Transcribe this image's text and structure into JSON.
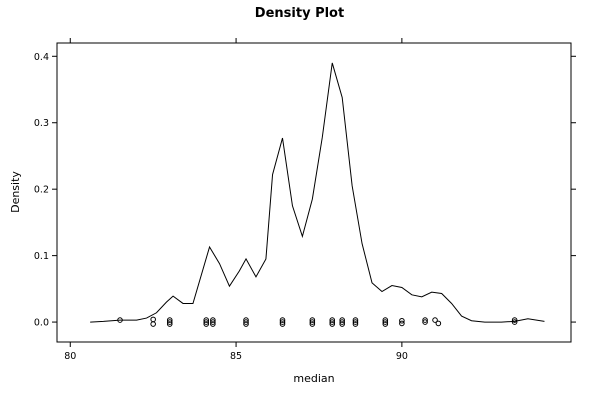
{
  "chart_data": {
    "type": "line",
    "title": "Density Plot",
    "xlabel": "median",
    "ylabel": "Density",
    "xlim": [
      79.6,
      95.1
    ],
    "ylim": [
      -0.03,
      0.42
    ],
    "x_ticks": [
      80,
      85,
      90
    ],
    "y_ticks": [
      0.0,
      0.1,
      0.2,
      0.3,
      0.4
    ],
    "x_tick_labels": [
      "80",
      "85",
      "90"
    ],
    "y_tick_labels": [
      "0.0",
      "0.1",
      "0.2",
      "0.3",
      "0.4"
    ],
    "grid": false,
    "legend": "none",
    "series": [
      {
        "x": [
          80.6,
          81.0,
          81.5,
          82.0,
          82.3,
          82.6,
          82.9,
          83.1,
          83.4,
          83.7,
          84.2,
          84.5,
          84.8,
          85.1,
          85.3,
          85.6,
          85.9,
          86.1,
          86.4,
          86.7,
          87.0,
          87.3,
          87.6,
          87.9,
          88.2,
          88.5,
          88.8,
          89.1,
          89.4,
          89.7,
          90.0,
          90.3,
          90.6,
          90.9,
          91.2,
          91.5,
          91.8,
          92.1,
          92.5,
          93.0,
          93.4,
          93.8,
          94.3
        ],
        "y": [
          0.0,
          0.001,
          0.003,
          0.003,
          0.006,
          0.014,
          0.03,
          0.039,
          0.028,
          0.028,
          0.113,
          0.088,
          0.054,
          0.077,
          0.095,
          0.068,
          0.095,
          0.222,
          0.277,
          0.175,
          0.129,
          0.185,
          0.278,
          0.39,
          0.338,
          0.205,
          0.118,
          0.059,
          0.046,
          0.055,
          0.052,
          0.041,
          0.038,
          0.045,
          0.043,
          0.028,
          0.009,
          0.002,
          0.0,
          0.0,
          0.001,
          0.005,
          0.001
        ]
      }
    ],
    "rug": [
      {
        "x": 81.5,
        "y": 0.003
      },
      {
        "x": 82.5,
        "y": 0.004
      },
      {
        "x": 82.5,
        "y": -0.003
      },
      {
        "x": 83.0,
        "y": 0.003
      },
      {
        "x": 83.0,
        "y": 0.0
      },
      {
        "x": 83.0,
        "y": -0.003
      },
      {
        "x": 84.1,
        "y": 0.003
      },
      {
        "x": 84.1,
        "y": 0.0
      },
      {
        "x": 84.1,
        "y": -0.003
      },
      {
        "x": 84.3,
        "y": 0.003
      },
      {
        "x": 84.3,
        "y": 0.0
      },
      {
        "x": 84.3,
        "y": -0.003
      },
      {
        "x": 85.3,
        "y": 0.003
      },
      {
        "x": 85.3,
        "y": 0.0
      },
      {
        "x": 85.3,
        "y": -0.003
      },
      {
        "x": 86.4,
        "y": 0.003
      },
      {
        "x": 86.4,
        "y": 0.0
      },
      {
        "x": 86.4,
        "y": -0.003
      },
      {
        "x": 87.3,
        "y": 0.003
      },
      {
        "x": 87.3,
        "y": 0.0
      },
      {
        "x": 87.3,
        "y": -0.003
      },
      {
        "x": 87.9,
        "y": 0.003
      },
      {
        "x": 87.9,
        "y": 0.0
      },
      {
        "x": 87.9,
        "y": -0.003
      },
      {
        "x": 88.2,
        "y": 0.003
      },
      {
        "x": 88.2,
        "y": 0.0
      },
      {
        "x": 88.2,
        "y": -0.003
      },
      {
        "x": 88.6,
        "y": 0.003
      },
      {
        "x": 88.6,
        "y": 0.0
      },
      {
        "x": 88.6,
        "y": -0.003
      },
      {
        "x": 89.5,
        "y": 0.003
      },
      {
        "x": 89.5,
        "y": 0.0
      },
      {
        "x": 89.5,
        "y": -0.003
      },
      {
        "x": 90.0,
        "y": 0.002
      },
      {
        "x": 90.0,
        "y": -0.002
      },
      {
        "x": 90.7,
        "y": 0.003
      },
      {
        "x": 90.7,
        "y": 0.0
      },
      {
        "x": 91.0,
        "y": 0.003
      },
      {
        "x": 91.1,
        "y": -0.002
      },
      {
        "x": 93.4,
        "y": 0.003
      },
      {
        "x": 93.4,
        "y": 0.0
      }
    ]
  }
}
